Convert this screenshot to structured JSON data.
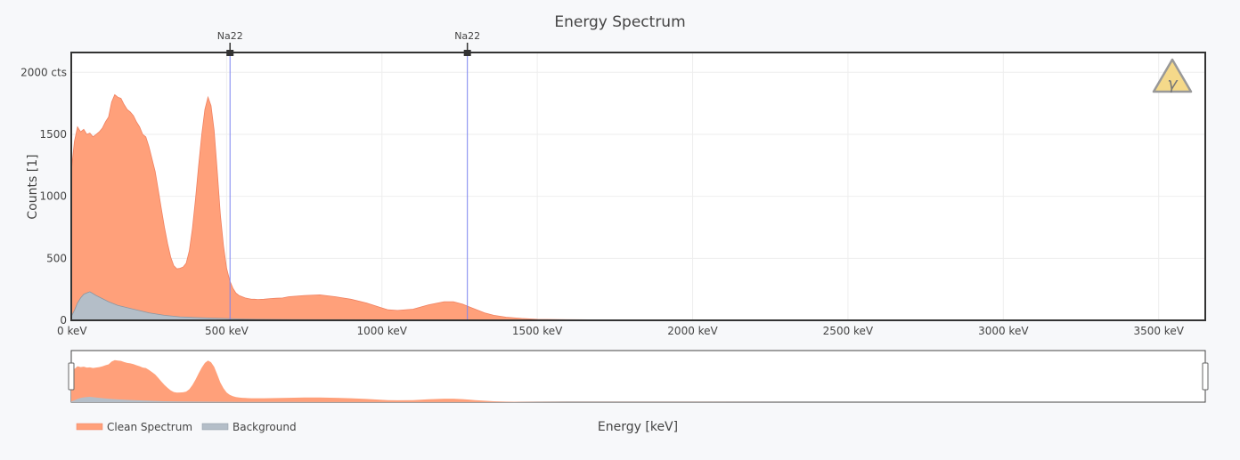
{
  "chart_data": {
    "type": "area",
    "title": "Energy Spectrum",
    "xlabel": "Energy [keV]",
    "ylabel": "Counts [1]",
    "xlim": [
      0,
      3650
    ],
    "ylim": [
      0,
      2160
    ],
    "x_ticks": [
      {
        "value": 0,
        "label": "0 keV"
      },
      {
        "value": 500,
        "label": "500 keV"
      },
      {
        "value": 1000,
        "label": "1000 keV"
      },
      {
        "value": 1500,
        "label": "1500 keV"
      },
      {
        "value": 2000,
        "label": "2000 keV"
      },
      {
        "value": 2500,
        "label": "2500 keV"
      },
      {
        "value": 3000,
        "label": "3000 keV"
      },
      {
        "value": 3500,
        "label": "3500 keV"
      }
    ],
    "y_ticks": [
      {
        "value": 0,
        "label": "0"
      },
      {
        "value": 500,
        "label": "500"
      },
      {
        "value": 1000,
        "label": "1000"
      },
      {
        "value": 1500,
        "label": "1500"
      },
      {
        "value": 2000,
        "label": "2000 cts"
      }
    ],
    "grid": true,
    "legend": "bottom-left",
    "series": [
      {
        "name": "Clean Spectrum",
        "color": "#ffa07a",
        "line_color": "#f08060",
        "x": [
          0,
          10,
          20,
          30,
          40,
          50,
          60,
          70,
          80,
          90,
          100,
          110,
          120,
          130,
          140,
          150,
          160,
          170,
          180,
          190,
          200,
          210,
          220,
          230,
          240,
          250,
          260,
          270,
          280,
          290,
          300,
          310,
          320,
          330,
          340,
          350,
          360,
          370,
          380,
          390,
          400,
          410,
          420,
          430,
          440,
          450,
          460,
          470,
          480,
          490,
          500,
          510,
          520,
          530,
          540,
          550,
          560,
          570,
          580,
          590,
          600,
          620,
          640,
          660,
          680,
          700,
          750,
          800,
          850,
          900,
          950,
          1000,
          1020,
          1050,
          1100,
          1150,
          1200,
          1230,
          1260,
          1280,
          1300,
          1330,
          1360,
          1400,
          1450,
          1500,
          1600,
          1800,
          2000,
          2500,
          3000,
          3650
        ],
        "values": [
          1200,
          1440,
          1560,
          1520,
          1540,
          1500,
          1510,
          1480,
          1500,
          1520,
          1550,
          1600,
          1640,
          1760,
          1820,
          1800,
          1790,
          1740,
          1700,
          1680,
          1650,
          1600,
          1560,
          1500,
          1480,
          1400,
          1300,
          1200,
          1050,
          900,
          750,
          620,
          510,
          440,
          415,
          420,
          430,
          460,
          560,
          740,
          980,
          1250,
          1500,
          1700,
          1800,
          1730,
          1530,
          1200,
          850,
          600,
          420,
          320,
          260,
          220,
          200,
          190,
          180,
          175,
          170,
          170,
          168,
          170,
          175,
          178,
          180,
          190,
          200,
          205,
          190,
          170,
          140,
          100,
          85,
          80,
          90,
          125,
          150,
          150,
          130,
          110,
          90,
          60,
          40,
          25,
          15,
          8,
          5,
          3,
          2,
          1,
          0,
          0
        ]
      },
      {
        "name": "Background",
        "color": "#b4bec8",
        "line_color": "#8a96a2",
        "x": [
          0,
          10,
          20,
          30,
          40,
          50,
          60,
          70,
          80,
          100,
          120,
          150,
          200,
          250,
          300,
          350,
          400,
          450,
          500,
          550,
          600,
          700,
          800,
          1000,
          1200,
          1400,
          1600,
          2000,
          3650
        ],
        "values": [
          30,
          80,
          140,
          180,
          210,
          220,
          230,
          215,
          200,
          175,
          150,
          120,
          90,
          60,
          40,
          28,
          22,
          18,
          14,
          10,
          8,
          6,
          5,
          4,
          3,
          2,
          1,
          1,
          0
        ]
      }
    ],
    "markers": [
      {
        "label": "Na22",
        "x": 511
      },
      {
        "label": "Na22",
        "x": 1275
      }
    ],
    "range_slider": {
      "xlim": [
        0,
        3650
      ]
    }
  },
  "icon": {
    "name": "gamma-warning-icon",
    "symbol": "γ",
    "fill": "#f5d98a",
    "stroke": "#999999"
  }
}
